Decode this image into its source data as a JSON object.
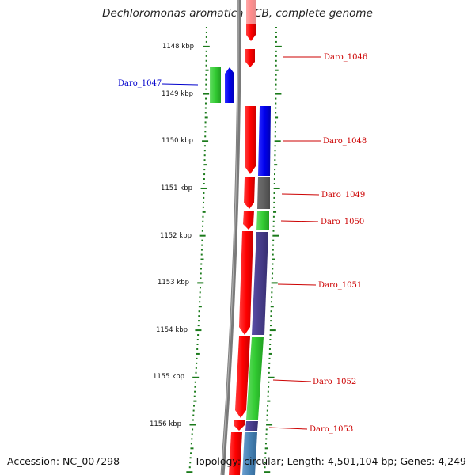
{
  "title": "Dechloromonas aromatica RCB, complete genome",
  "accession": "Accession: NC_007298",
  "topology": "Topology: circular; Length: 4,501,104 bp; Genes: 4,249",
  "colors": {
    "label_right": "#cc0000",
    "label_left": "#0000cc",
    "tick": "#1a7a1a"
  },
  "scale": [
    {
      "label": "1148 kbp",
      "kbp": 1148
    },
    {
      "label": "1149 kbp",
      "kbp": 1149
    },
    {
      "label": "1150 kbp",
      "kbp": 1150
    },
    {
      "label": "1151 kbp",
      "kbp": 1151
    },
    {
      "label": "1152 kbp",
      "kbp": 1152
    },
    {
      "label": "1153 kbp",
      "kbp": 1153
    },
    {
      "label": "1154 kbp",
      "kbp": 1154
    },
    {
      "label": "1155 kbp",
      "kbp": 1155
    },
    {
      "label": "1156 kbp",
      "kbp": 1156
    }
  ],
  "genes": [
    {
      "label": "Daro_1046",
      "side": "right",
      "label_kbp": 1148.23
    },
    {
      "label": "Daro_1047",
      "side": "left",
      "label_kbp": 1148.81
    },
    {
      "label": "Daro_1048",
      "side": "right",
      "label_kbp": 1150.02
    },
    {
      "label": "Daro_1049",
      "side": "right",
      "label_kbp": 1151.14
    },
    {
      "label": "Daro_1050",
      "side": "right",
      "label_kbp": 1151.71
    },
    {
      "label": "Daro_1051",
      "side": "right",
      "label_kbp": 1153.06
    },
    {
      "label": "Daro_1052",
      "side": "right",
      "label_kbp": 1155.1
    },
    {
      "label": "Daro_1053",
      "side": "right",
      "label_kbp": 1156.1
    }
  ]
}
